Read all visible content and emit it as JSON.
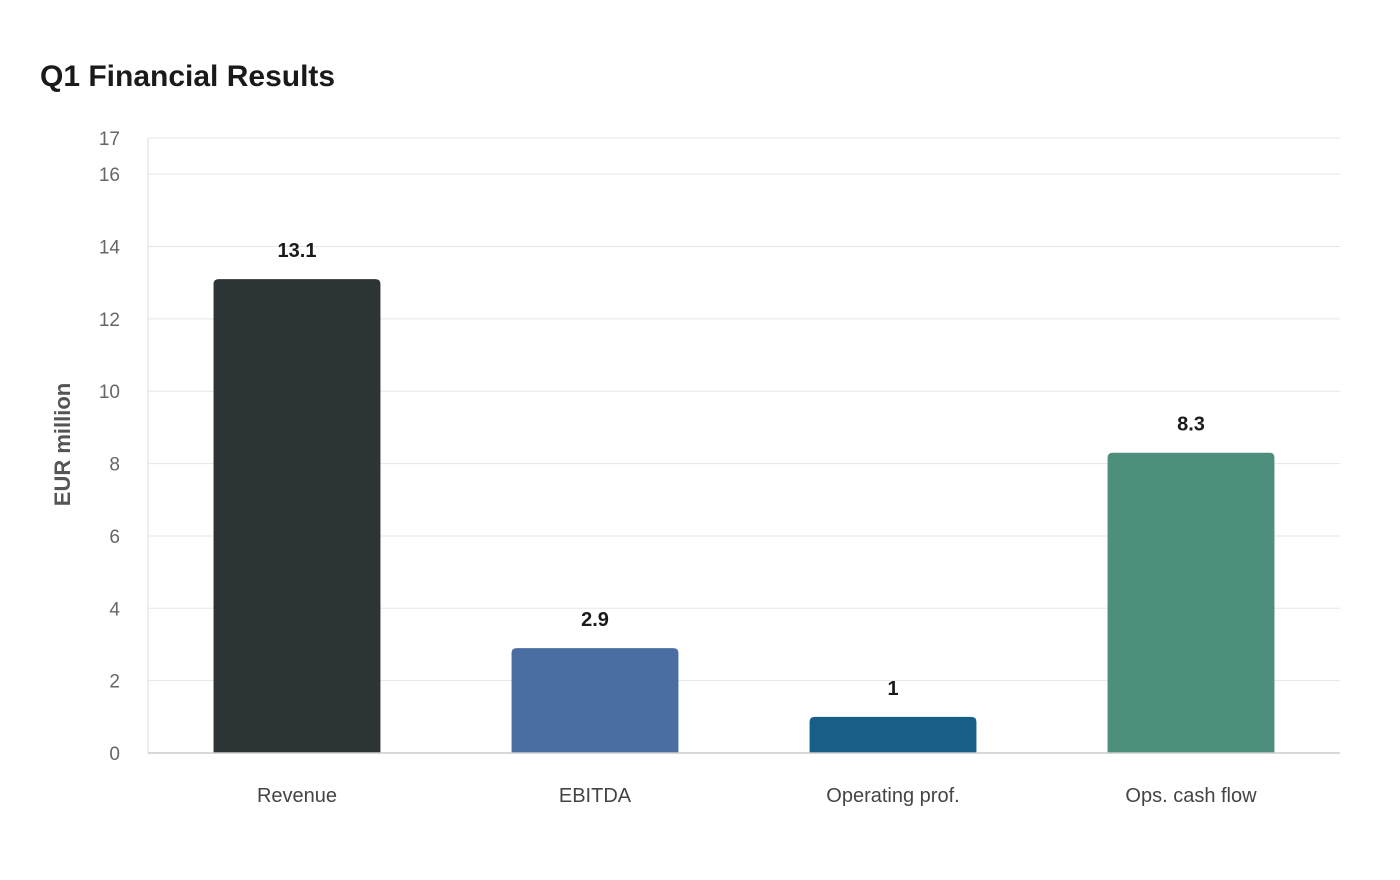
{
  "chart_data": {
    "type": "bar",
    "title": "Q1 Financial Results",
    "xlabel": "",
    "ylabel": "EUR million",
    "categories": [
      "Revenue",
      "EBITDA",
      "Operating prof.",
      "Ops. cash flow"
    ],
    "values": [
      13.1,
      2.9,
      1,
      8.3
    ],
    "value_labels": [
      "13.1",
      "2.9",
      "1",
      "8.3"
    ],
    "colors": [
      "#2d3436",
      "#4a6ea1",
      "#185f87",
      "#4e8e7c"
    ],
    "ylim": [
      0,
      17
    ],
    "yticks": [
      0,
      2,
      4,
      6,
      8,
      10,
      12,
      14,
      16,
      17
    ],
    "grid": true,
    "legend": "none"
  }
}
